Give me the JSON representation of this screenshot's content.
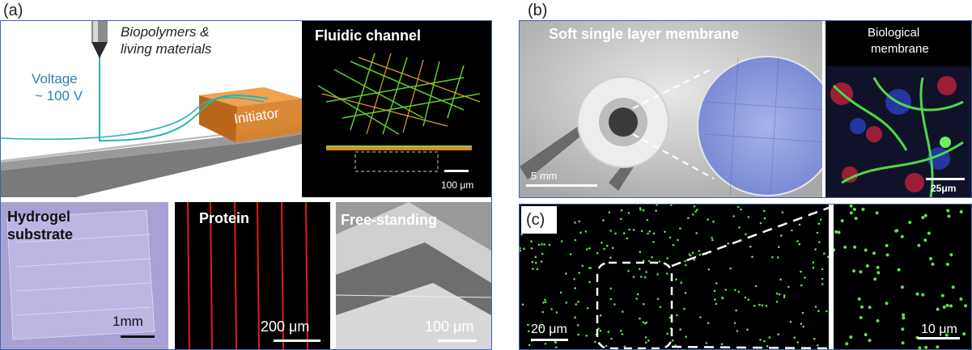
{
  "panel_a": {
    "label": "(a)",
    "nozzle_caption_line1": "Biopolymers &",
    "nozzle_caption_line2": "living materials",
    "voltage_line1": "Voltage",
    "voltage_line2": "~ 100 V",
    "initiator": "Initiator",
    "fluidic_title": "Fluidic channel",
    "fluidic_scale": "100 μm",
    "hydrogel_line1": "Hydrogel",
    "hydrogel_line2": "substrate",
    "hydrogel_scale": "1mm",
    "protein_title": "Protein",
    "protein_scale": "200 μm",
    "freestanding_title": "Free-standing",
    "freestanding_scale": "100 μm"
  },
  "panel_b": {
    "label": "(b)",
    "membrane_title": "Soft single layer membrane",
    "membrane_scale": "5 mm",
    "bio_line1": "Biological",
    "bio_line2": "membrane",
    "bio_scale": "25μm"
  },
  "panel_c": {
    "label": "(c)",
    "left_scale": "20 μm",
    "right_scale": "10 μm"
  },
  "colors": {
    "frame": "#3d63b0",
    "voltage_text": "#2a7fb8",
    "fiber_green": "#5fd02a",
    "fiber_orange": "#e0a12a",
    "protein_red": "#e01b1b",
    "initiator_orange": "#d9822b"
  }
}
